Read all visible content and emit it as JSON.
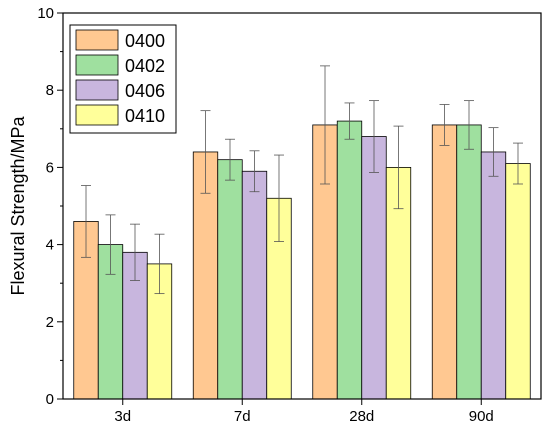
{
  "chart_data": {
    "type": "bar",
    "title": "",
    "xlabel": "",
    "ylabel": "Flexural Strength/MPa",
    "ylim": [
      0,
      10
    ],
    "yticks": [
      0,
      2,
      4,
      6,
      8,
      10
    ],
    "categories": [
      "3d",
      "7d",
      "28d",
      "90d"
    ],
    "grid": false,
    "legend_position": "top-left",
    "error_bars": true,
    "series": [
      {
        "name": "0400",
        "color": "#FFC891",
        "values": [
          4.6,
          6.4,
          7.1,
          7.1
        ],
        "errors": [
          0.93,
          1.07,
          1.53,
          0.53
        ]
      },
      {
        "name": "0402",
        "color": "#9FE09F",
        "values": [
          4.0,
          6.2,
          7.2,
          7.1
        ],
        "errors": [
          0.77,
          0.53,
          0.47,
          0.63
        ]
      },
      {
        "name": "0406",
        "color": "#C8B6DE",
        "values": [
          3.8,
          5.9,
          6.8,
          6.4
        ],
        "errors": [
          0.73,
          0.53,
          0.93,
          0.63
        ]
      },
      {
        "name": "0410",
        "color": "#FFFF9A",
        "values": [
          3.5,
          5.2,
          6.0,
          6.1
        ],
        "errors": [
          0.77,
          1.12,
          1.07,
          0.53
        ]
      }
    ]
  }
}
